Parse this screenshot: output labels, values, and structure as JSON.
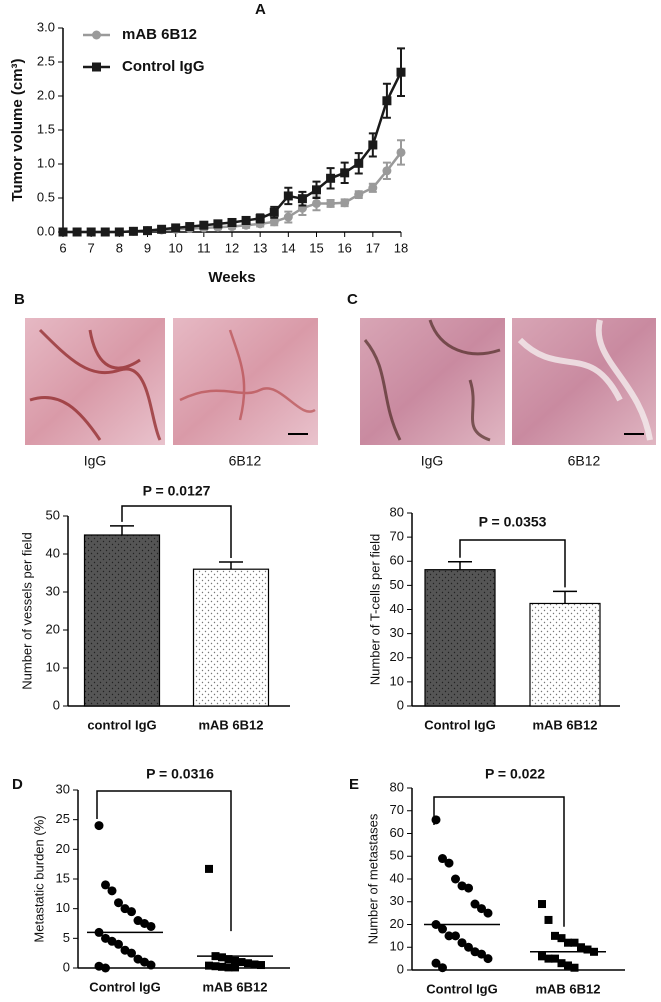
{
  "chart_data": [
    {
      "type": "line",
      "panel": "A",
      "xlabel": "Weeks",
      "ylabel": "Tumor volume (cm³)",
      "legend": "upper left",
      "x": [
        6,
        6.5,
        7,
        7.5,
        8,
        8.5,
        9,
        9.5,
        10,
        10.5,
        11,
        11.5,
        12,
        12.5,
        13,
        13.5,
        14,
        14.5,
        15,
        15.5,
        16,
        16.5,
        17,
        17.5,
        18
      ],
      "series": [
        {
          "name": "mAB 6B12",
          "color": "#9a9a9a",
          "marker": "circle",
          "values": [
            0,
            0,
            0,
            0,
            0,
            0.01,
            0.02,
            0.03,
            0.04,
            0.05,
            0.06,
            0.07,
            0.08,
            0.1,
            0.12,
            0.15,
            0.22,
            0.35,
            0.42,
            0.42,
            0.43,
            0.55,
            0.65,
            0.9,
            1.17
          ],
          "errors": [
            0.01,
            0.01,
            0.01,
            0.01,
            0.01,
            0.01,
            0.02,
            0.02,
            0.02,
            0.02,
            0.03,
            0.03,
            0.03,
            0.04,
            0.04,
            0.05,
            0.08,
            0.1,
            0.1,
            0.05,
            0.05,
            0.05,
            0.06,
            0.12,
            0.18
          ]
        },
        {
          "name": "Control IgG",
          "color": "#1a1a1a",
          "marker": "square",
          "values": [
            0,
            0,
            0,
            0,
            0,
            0.01,
            0.02,
            0.04,
            0.06,
            0.08,
            0.1,
            0.12,
            0.14,
            0.17,
            0.2,
            0.29,
            0.53,
            0.49,
            0.62,
            0.79,
            0.87,
            1.01,
            1.28,
            1.93,
            2.35
          ],
          "errors": [
            0.01,
            0.01,
            0.01,
            0.01,
            0.01,
            0.02,
            0.02,
            0.03,
            0.03,
            0.04,
            0.04,
            0.05,
            0.05,
            0.05,
            0.06,
            0.08,
            0.12,
            0.1,
            0.12,
            0.15,
            0.15,
            0.15,
            0.17,
            0.25,
            0.35
          ]
        }
      ],
      "xlim": [
        6,
        18
      ],
      "xticks": [
        6,
        7,
        8,
        9,
        10,
        11,
        12,
        13,
        14,
        15,
        16,
        17,
        18
      ],
      "ylim": [
        0,
        3
      ],
      "yticks": [
        {
          "value": 0,
          "label": "0.0"
        },
        0.5,
        {
          "value": 1,
          "label": "1.0"
        },
        1.5,
        {
          "value": 2,
          "label": "2.0"
        },
        2.5,
        {
          "value": 3,
          "label": "3.0"
        }
      ]
    },
    {
      "type": "bar",
      "panel": "B",
      "image_captions": [
        "IgG",
        "6B12"
      ],
      "ylabel": "Number of vessels per field",
      "annotation": "P = 0.0127",
      "categories": [
        "control IgG",
        "mAB 6B12"
      ],
      "values": [
        45,
        36
      ],
      "errors": [
        2.4,
        1.9
      ],
      "colors": [
        "#555555",
        "#ffffff"
      ],
      "ylim": [
        0,
        50
      ],
      "yticks": [
        0,
        10,
        20,
        30,
        40,
        50
      ]
    },
    {
      "type": "bar",
      "panel": "C",
      "image_captions": [
        "IgG",
        "6B12"
      ],
      "ylabel": "Number of T-cells per field",
      "annotation": "P = 0.0353",
      "categories": [
        "Control IgG",
        "mAB 6B12"
      ],
      "values": [
        56.5,
        42.5
      ],
      "errors": [
        3.3,
        5
      ],
      "colors": [
        "#555555",
        "#ffffff"
      ],
      "ylim": [
        0,
        80
      ],
      "yticks": [
        0,
        10,
        20,
        30,
        40,
        50,
        60,
        70,
        80
      ]
    },
    {
      "type": "strip",
      "panel": "D",
      "ylabel": "Metastatic burden (%)",
      "annotation": "P = 0.0316",
      "categories": [
        "Control IgG",
        "mAB 6B12"
      ],
      "markers": [
        "circle",
        "square"
      ],
      "color": "#000000",
      "groups": [
        [
          24,
          14,
          13,
          11,
          10,
          9.5,
          8,
          7.5,
          7,
          6,
          5,
          4.5,
          4,
          3,
          2.5,
          1.5,
          1,
          0.5,
          0.3,
          0
        ],
        [
          16.7,
          2,
          1.8,
          1.5,
          1.2,
          1,
          0.8,
          0.6,
          0.5,
          0.4,
          0.3,
          0.2,
          0.1,
          0.1
        ]
      ],
      "means": [
        6,
        2
      ],
      "ylim": [
        0,
        30
      ],
      "yticks": [
        0,
        5,
        10,
        15,
        20,
        25,
        30
      ]
    },
    {
      "type": "strip",
      "panel": "E",
      "ylabel": "Number of metastases",
      "annotation": "P = 0.022",
      "categories": [
        "Control IgG",
        "mAB 6B12"
      ],
      "markers": [
        "circle",
        "square"
      ],
      "color": "#000000",
      "groups": [
        [
          66,
          49,
          47,
          40,
          37,
          36,
          29,
          27,
          25,
          20,
          18,
          15,
          15,
          12,
          10,
          8,
          7,
          5,
          3,
          1
        ],
        [
          29,
          22,
          15,
          14,
          12,
          12,
          10,
          9,
          8,
          6,
          5,
          5,
          3,
          2,
          1
        ]
      ],
      "means": [
        20,
        8
      ],
      "ylim": [
        0,
        80
      ],
      "yticks": [
        0,
        10,
        20,
        30,
        40,
        50,
        60,
        70,
        80
      ]
    }
  ]
}
